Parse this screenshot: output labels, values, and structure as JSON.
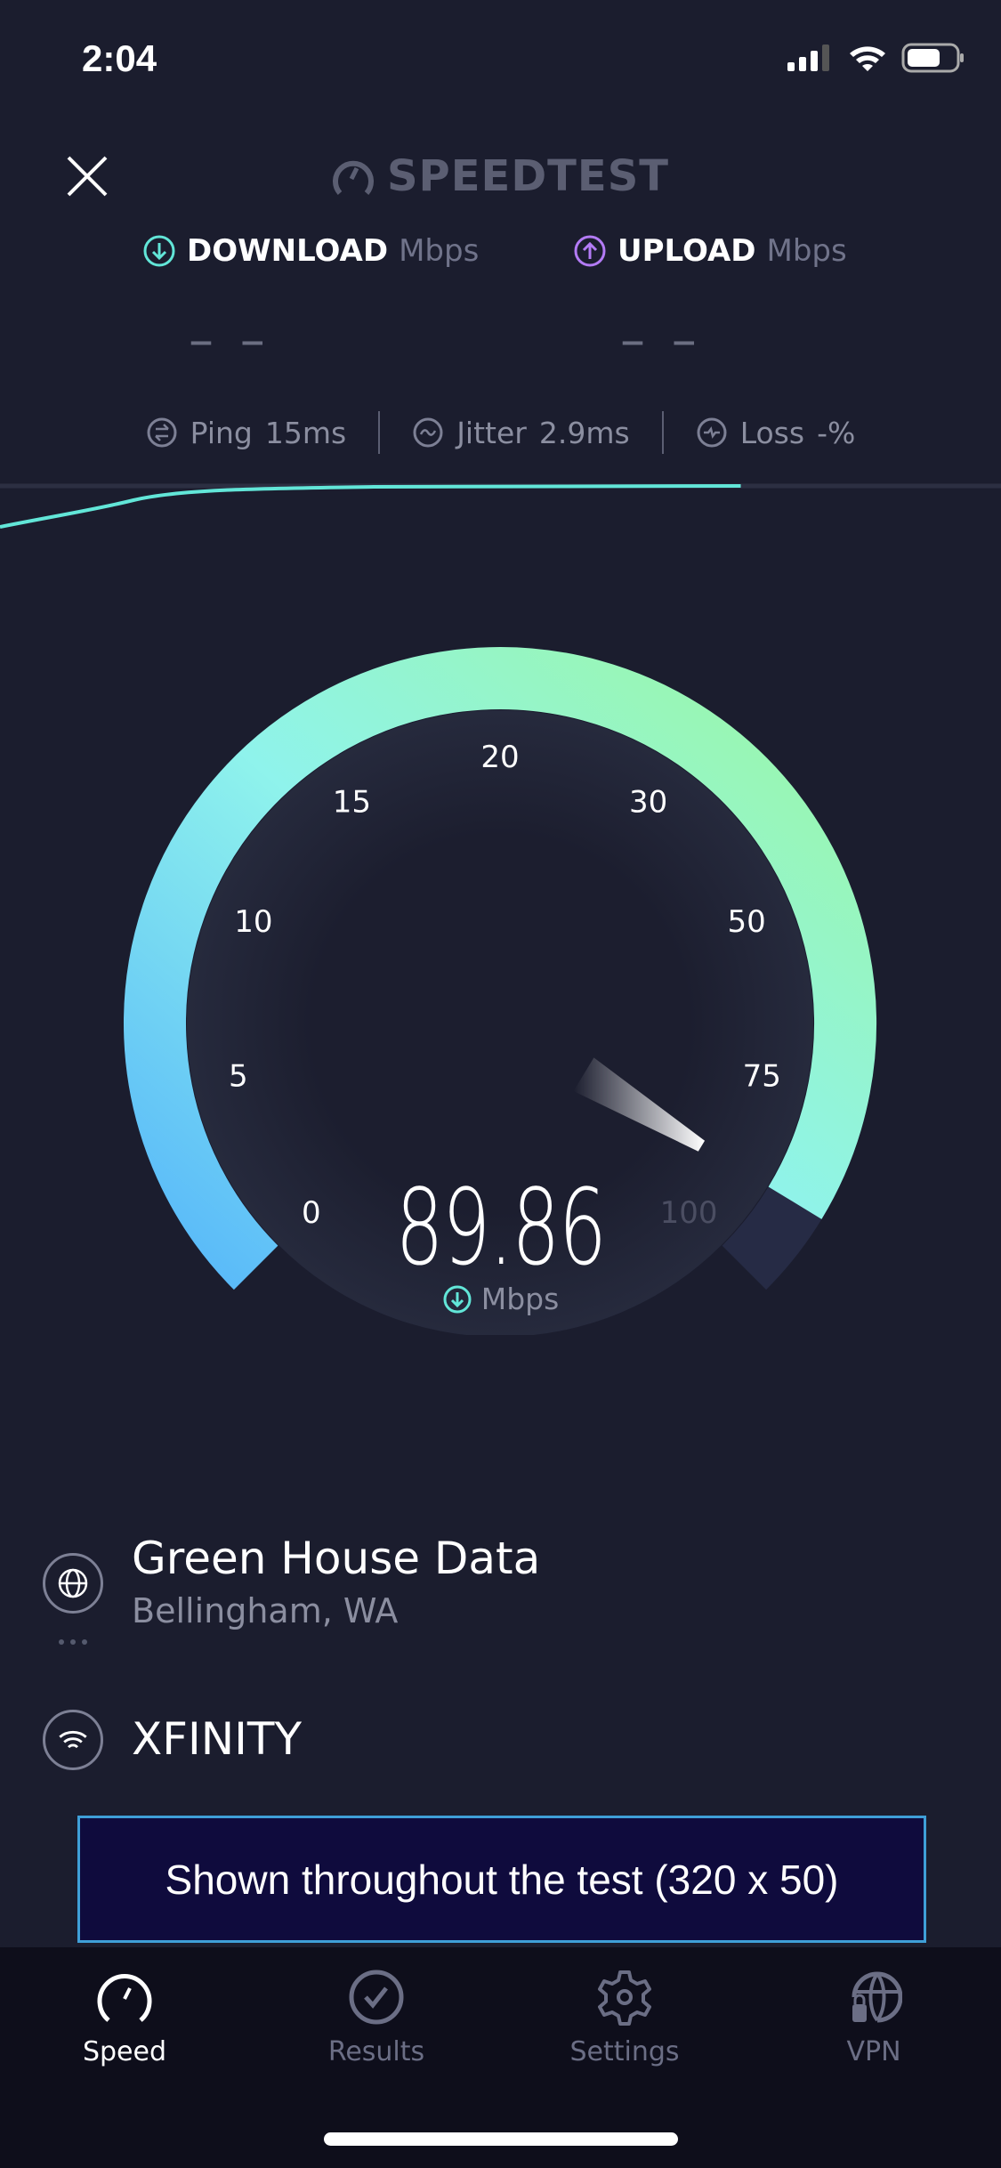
{
  "status_bar": {
    "time": "2:04",
    "icons": [
      "cellular-signal-icon",
      "wifi-icon",
      "battery-icon"
    ]
  },
  "header": {
    "logo_text": "SPEEDTEST",
    "close_icon": "close-icon"
  },
  "download": {
    "label": "DOWNLOAD",
    "unit": "Mbps",
    "value": "– –",
    "color": "#62e6d8"
  },
  "upload": {
    "label": "UPLOAD",
    "unit": "Mbps",
    "value": "– –",
    "color": "#b37bf5"
  },
  "metrics": {
    "ping": {
      "label": "Ping",
      "value": "15",
      "unit": "ms"
    },
    "jitter": {
      "label": "Jitter",
      "value": "2.9",
      "unit": "ms"
    },
    "loss": {
      "label": "Loss",
      "value": "-",
      "unit": "%"
    }
  },
  "progress": {
    "fraction": 0.74,
    "color": "#62e6d8"
  },
  "gauge": {
    "ticks": [
      "0",
      "5",
      "10",
      "15",
      "20",
      "30",
      "50",
      "75",
      "100"
    ],
    "value": 89.86,
    "value_text": "89.86",
    "unit": "Mbps",
    "colors": {
      "start": "#56b6fa",
      "mid": "#8ff3ec",
      "end": "#9cf7a3"
    }
  },
  "server": {
    "name": "Green House Data",
    "location": "Bellingham, WA"
  },
  "isp": {
    "name": "XFINITY"
  },
  "ad": {
    "text": "Shown throughout the test (320 x 50)"
  },
  "tabs": [
    {
      "label": "Speed",
      "icon": "speedometer-icon",
      "active": true
    },
    {
      "label": "Results",
      "icon": "check-circle-icon",
      "active": false
    },
    {
      "label": "Settings",
      "icon": "gear-icon",
      "active": false
    },
    {
      "label": "VPN",
      "icon": "globe-lock-icon",
      "active": false
    }
  ]
}
